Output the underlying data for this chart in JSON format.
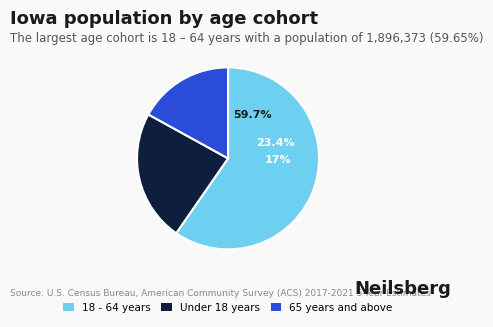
{
  "title": "Iowa population by age cohort",
  "subtitle": "The largest age cohort is 18 – 64 years with a population of 1,896,373 (59.65%)",
  "slices": [
    59.7,
    23.4,
    17.0
  ],
  "labels": [
    "18 - 64 years",
    "Under 18 years",
    "65 years and above"
  ],
  "pct_labels": [
    "59.7%",
    "23.4%",
    "17%"
  ],
  "colors": [
    "#6dd0f0",
    "#0d1f3c",
    "#2b4cdb"
  ],
  "legend_colors": [
    "#6dd0f0",
    "#0d1f3c",
    "#2b4cdb"
  ],
  "source_text": "Source: U.S. Census Bureau, American Community Survey (ACS) 2017-2021 5-Year Estimates",
  "neilsberg_text": "Neilsberg",
  "bg_color": "#f9f9f9",
  "title_fontsize": 13,
  "subtitle_fontsize": 8.5,
  "legend_fontsize": 7.5,
  "source_fontsize": 6.5,
  "neilsberg_fontsize": 13,
  "startangle": 90,
  "pct_label_colors": [
    "#1a1a1a",
    "#ffffff",
    "#ffffff"
  ]
}
